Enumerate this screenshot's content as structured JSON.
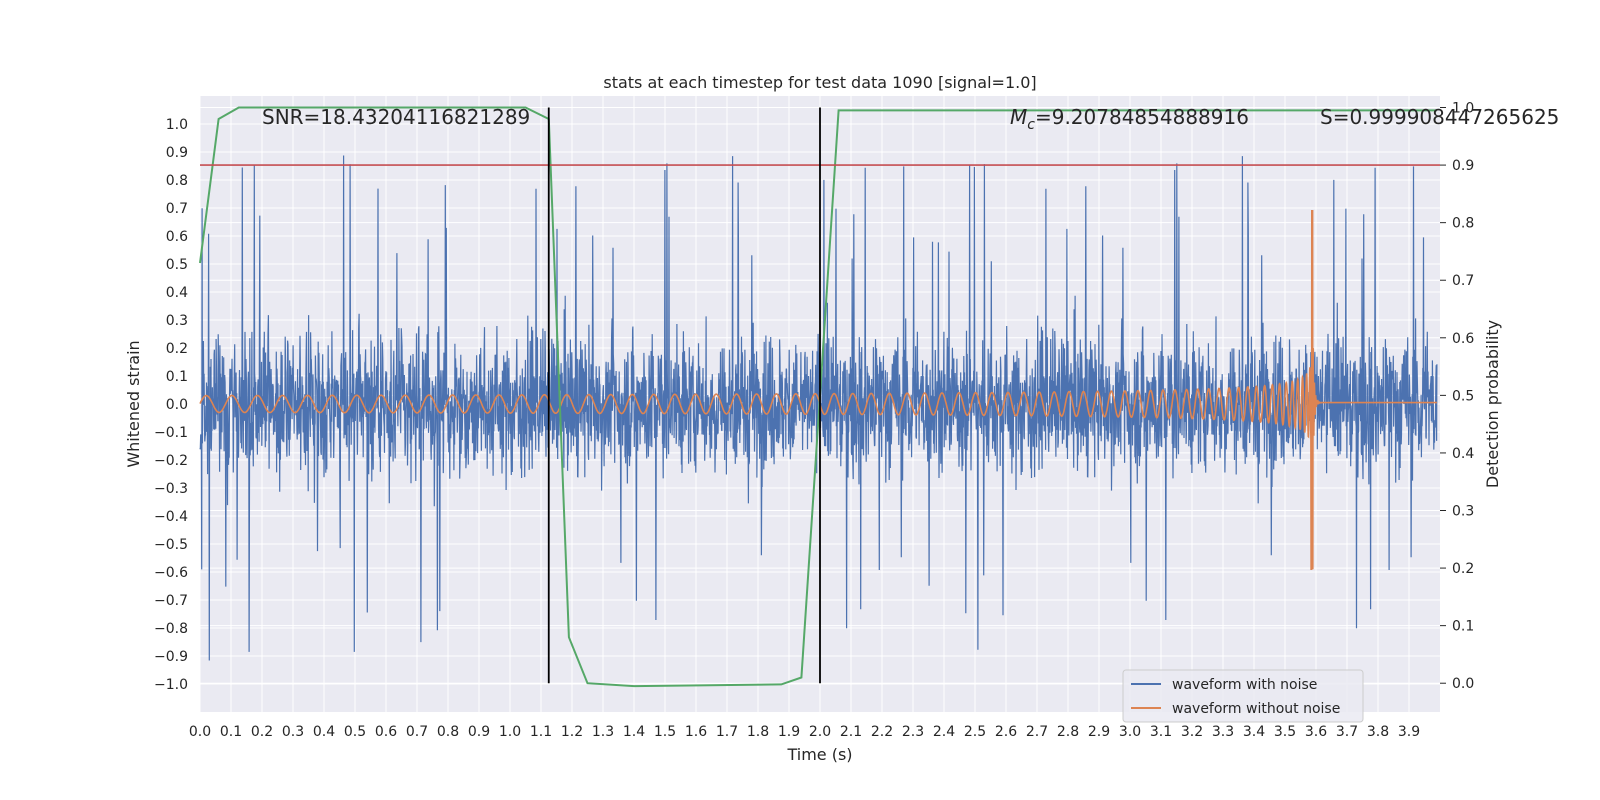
{
  "chart_data": {
    "type": "line",
    "title": "stats at each timestep for test data 1090 [signal=1.0]",
    "xlabel": "Time (s)",
    "ylabel": "Whitened strain",
    "y2label": "Detection probability",
    "xlim": [
      0.0,
      4.0
    ],
    "ylim": [
      -1.1,
      1.1
    ],
    "y2lim": [
      -0.05,
      1.02
    ],
    "x_ticks": [
      0.0,
      0.1,
      0.2,
      0.3,
      0.4,
      0.5,
      0.6,
      0.7,
      0.8,
      0.9,
      1.0,
      1.1,
      1.2,
      1.3,
      1.4,
      1.5,
      1.6,
      1.7,
      1.8,
      1.9,
      2.0,
      2.1,
      2.2,
      2.3,
      2.4,
      2.5,
      2.6,
      2.7,
      2.8,
      2.9,
      3.0,
      3.1,
      3.2,
      3.3,
      3.4,
      3.5,
      3.6,
      3.7,
      3.8,
      3.9
    ],
    "y_ticks": [
      1.0,
      0.9,
      0.8,
      0.7,
      0.6,
      0.5,
      0.4,
      0.3,
      0.2,
      0.1,
      0.0,
      -0.1,
      -0.2,
      -0.3,
      -0.4,
      -0.5,
      -0.6,
      -0.7,
      -0.8,
      -0.9,
      -1.0
    ],
    "y2_ticks": [
      1.0,
      0.9,
      0.8,
      0.7,
      0.6,
      0.5,
      0.4,
      0.3,
      0.2,
      0.1,
      0.0
    ],
    "grid": true,
    "legend_position": "lower-right",
    "annotations": {
      "snr": "SNR=18.43204116821289",
      "mc_symbol": "M",
      "mc_subscript": "c",
      "mc_value": "=9.20784854888916",
      "s": "S=0.999908447265625"
    },
    "threshold_line": {
      "y2": 0.9,
      "color": "#c44e52"
    },
    "vertical_lines": [
      {
        "x": 1.125,
        "color": "#000000"
      },
      {
        "x": 2.0,
        "color": "#000000"
      }
    ],
    "series": [
      {
        "name": "waveform with noise",
        "color": "#4c72b0",
        "axis": "left",
        "description": "dense noisy whitened strain, amplitude roughly within -0.6..0.6 with spikes up to about 0.95 and down to -1.0"
      },
      {
        "name": "waveform without noise",
        "color": "#dd8452",
        "axis": "left",
        "chirp": {
          "start": 0.0,
          "merger": 3.59,
          "f0": 12,
          "amp0": 0.03,
          "peak_max": 0.69,
          "peak_min": -0.59,
          "post_merger_level": 0.005
        }
      },
      {
        "name": "detection probability",
        "color": "#55a868",
        "axis": "right",
        "x": [
          0.0,
          0.06,
          0.125,
          1.05,
          1.125,
          1.19,
          1.25,
          1.4,
          1.875,
          1.94,
          2.0,
          2.06,
          3.99
        ],
        "y": [
          0.73,
          0.98,
          1.0,
          1.0,
          0.98,
          0.08,
          0.0,
          -0.005,
          -0.002,
          0.01,
          0.5,
          0.995,
          0.995
        ]
      }
    ]
  }
}
